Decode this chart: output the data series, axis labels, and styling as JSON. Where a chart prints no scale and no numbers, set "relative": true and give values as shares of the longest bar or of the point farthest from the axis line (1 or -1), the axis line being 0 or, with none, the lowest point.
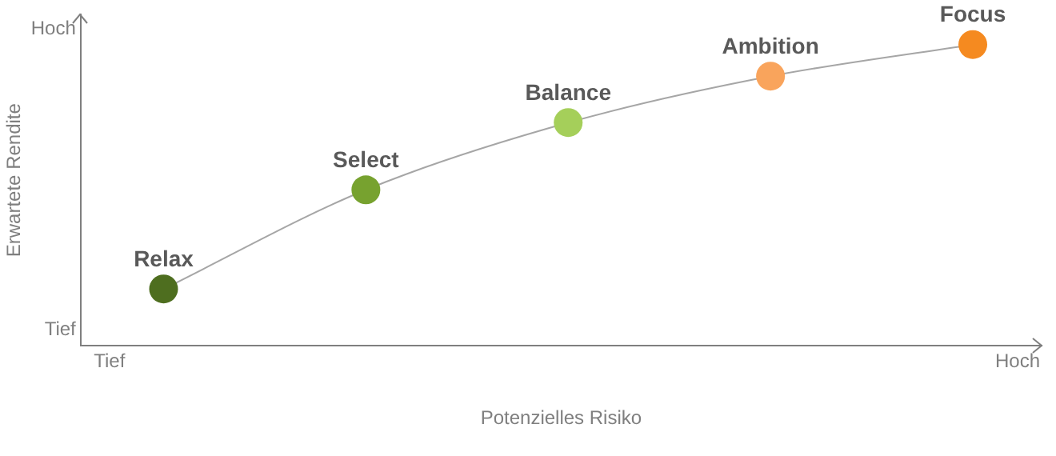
{
  "chart_data": {
    "type": "line",
    "relative": true,
    "xlabel": "Potenzielles Risiko",
    "ylabel": "Erwartete Rendite",
    "categories": [
      null,
      null,
      null,
      null,
      null
    ],
    "grid": false,
    "legend": false,
    "marker": "circle",
    "series": [
      {
        "color": "#a6a6a6",
        "colors": [
          "#4e6e1f",
          "#77a22f",
          "#a5cf5a",
          "#f9a45c",
          "#f58a20"
        ],
        "values": [
          0.189,
          0.518,
          0.741,
          0.895,
          1
        ]
      }
    ],
    "annotations": [
      "Hoch",
      "Tief",
      "Tief",
      "Hoch",
      {
        "text": "Relax",
        "y": 0.189
      },
      {
        "text": "Select",
        "y": 0.518
      },
      {
        "text": "Balance",
        "y": 0.741
      },
      {
        "text": "Ambition",
        "y": 0.895
      },
      {
        "text": "Focus",
        "y": 1
      }
    ]
  }
}
